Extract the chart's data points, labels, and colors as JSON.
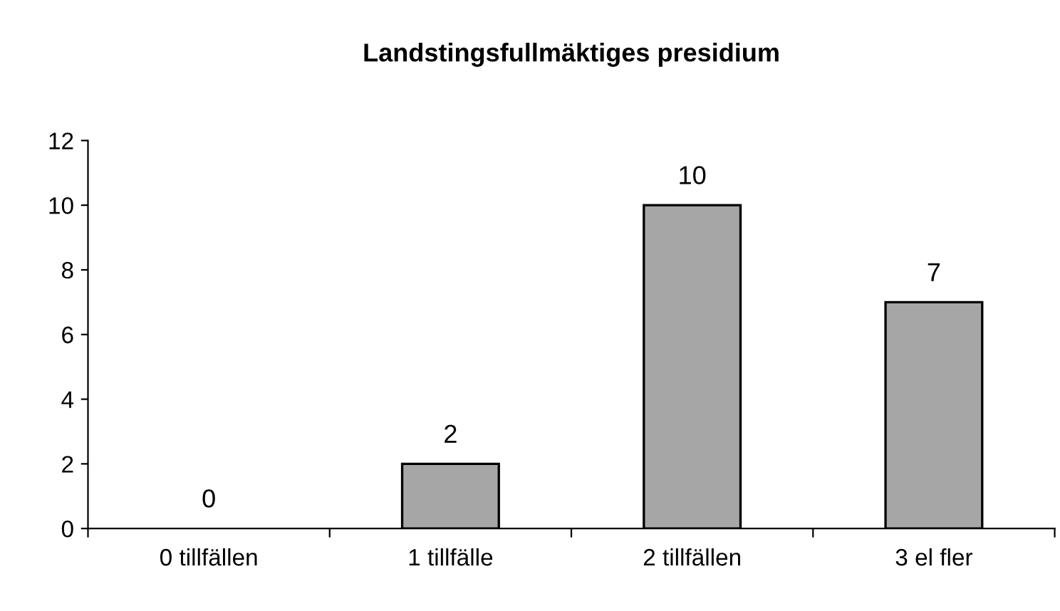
{
  "chart_data": {
    "type": "bar",
    "title": "Landstingsfullmäktiges presidium",
    "categories": [
      "0 tillfällen",
      "1 tillfälle",
      "2 tillfällen",
      "3 el fler"
    ],
    "values": [
      0,
      2,
      10,
      7
    ],
    "color": "#a6a6a6",
    "ylim": [
      0,
      12
    ],
    "yticks": [
      0,
      2,
      4,
      6,
      8,
      10,
      12
    ],
    "grid": false,
    "data_labels": true
  }
}
